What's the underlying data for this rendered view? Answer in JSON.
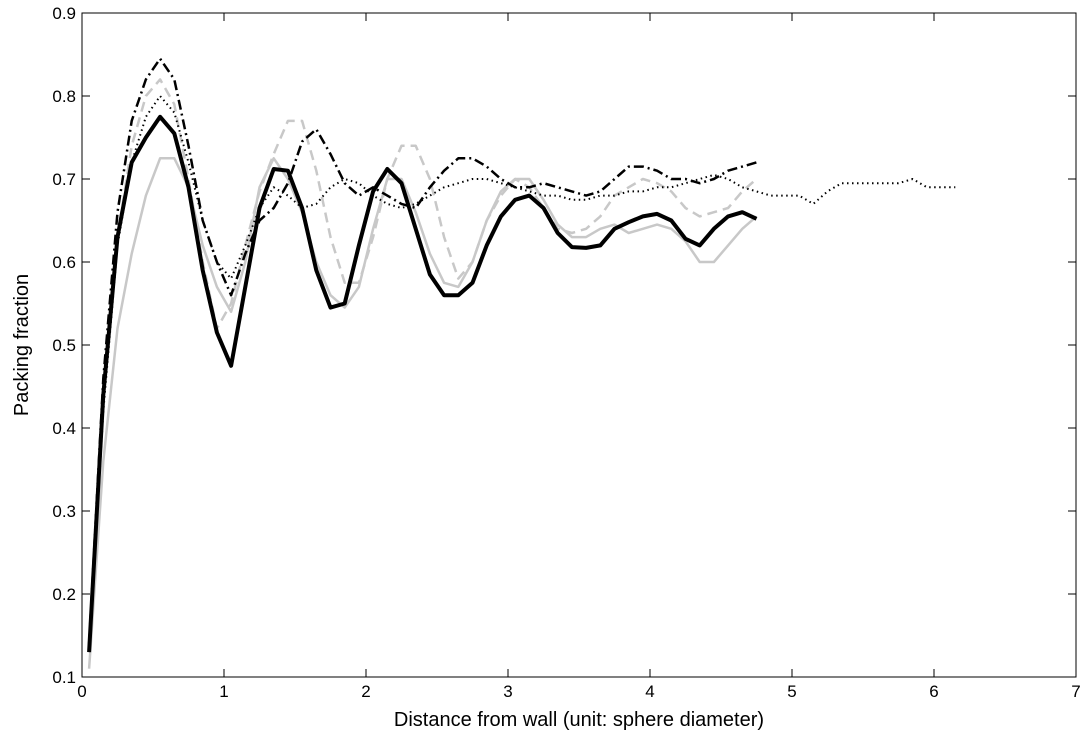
{
  "chart_data": {
    "type": "line",
    "title": "",
    "xlabel": "Distance from wall (unit: sphere diameter)",
    "ylabel": "Packing fraction",
    "xlim": [
      0,
      7
    ],
    "ylim": [
      0.1,
      0.9
    ],
    "xticks": [
      0,
      1,
      2,
      3,
      4,
      5,
      6,
      7
    ],
    "xtick_labels": [
      "0",
      "1",
      "2",
      "3",
      "4",
      "5",
      "6",
      "7"
    ],
    "yticks": [
      0.1,
      0.2,
      0.3,
      0.4,
      0.5,
      0.6,
      0.7,
      0.8,
      0.9
    ],
    "ytick_labels": [
      "0.1",
      "0.2",
      "0.3",
      "0.4",
      "0.5",
      "0.6",
      "0.7",
      "0.8",
      "0.9"
    ],
    "grid": false,
    "legend": "none",
    "series": [
      {
        "color": "#c8c8c8",
        "dash": "solid",
        "width": 2.5,
        "x": [
          0.05,
          0.15,
          0.25,
          0.35,
          0.45,
          0.55,
          0.65,
          0.75,
          0.85,
          0.95,
          1.05,
          1.15,
          1.25,
          1.35,
          1.45,
          1.55,
          1.65,
          1.75,
          1.85,
          1.95,
          2.05,
          2.15,
          2.25,
          2.35,
          2.45,
          2.55,
          2.65,
          2.75,
          2.85,
          2.95,
          3.05,
          3.15,
          3.25,
          3.35,
          3.45,
          3.55,
          3.65,
          3.75,
          3.85,
          3.95,
          4.05,
          4.15,
          4.25,
          4.35,
          4.45,
          4.55,
          4.65,
          4.75
        ],
        "y": [
          0.11,
          0.36,
          0.52,
          0.61,
          0.68,
          0.725,
          0.725,
          0.69,
          0.62,
          0.57,
          0.54,
          0.6,
          0.69,
          0.725,
          0.7,
          0.66,
          0.6,
          0.56,
          0.545,
          0.57,
          0.64,
          0.7,
          0.7,
          0.66,
          0.61,
          0.575,
          0.57,
          0.6,
          0.65,
          0.685,
          0.7,
          0.7,
          0.675,
          0.645,
          0.63,
          0.63,
          0.64,
          0.645,
          0.635,
          0.64,
          0.645,
          0.64,
          0.625,
          0.6,
          0.6,
          0.62,
          0.64,
          0.655
        ]
      },
      {
        "color": "#c8c8c8",
        "dash": "dashed",
        "width": 2.5,
        "x": [
          0.05,
          0.15,
          0.25,
          0.35,
          0.45,
          0.55,
          0.65,
          0.75,
          0.85,
          0.95,
          1.05,
          1.15,
          1.25,
          1.35,
          1.45,
          1.55,
          1.65,
          1.75,
          1.85,
          1.95,
          2.05,
          2.15,
          2.25,
          2.35,
          2.45,
          2.55,
          2.65,
          2.75,
          2.85,
          2.95,
          3.05,
          3.15,
          3.25,
          3.35,
          3.45,
          3.55,
          3.65,
          3.75,
          3.85,
          3.95,
          4.05,
          4.15,
          4.25,
          4.35,
          4.45,
          4.55,
          4.65,
          4.75
        ],
        "y": [
          0.13,
          0.44,
          0.63,
          0.74,
          0.8,
          0.82,
          0.79,
          0.7,
          0.6,
          0.52,
          0.55,
          0.62,
          0.685,
          0.73,
          0.77,
          0.77,
          0.71,
          0.63,
          0.575,
          0.575,
          0.63,
          0.7,
          0.74,
          0.74,
          0.7,
          0.63,
          0.58,
          0.6,
          0.65,
          0.68,
          0.7,
          0.69,
          0.665,
          0.64,
          0.635,
          0.64,
          0.655,
          0.68,
          0.69,
          0.7,
          0.695,
          0.685,
          0.665,
          0.655,
          0.66,
          0.665,
          0.685,
          0.7
        ]
      },
      {
        "color": "#000000",
        "dash": "dotted",
        "width": 2.0,
        "x": [
          0.05,
          0.15,
          0.25,
          0.35,
          0.45,
          0.55,
          0.65,
          0.75,
          0.85,
          0.95,
          1.05,
          1.15,
          1.25,
          1.35,
          1.45,
          1.55,
          1.65,
          1.75,
          1.85,
          1.95,
          2.05,
          2.15,
          2.25,
          2.35,
          2.45,
          2.55,
          2.65,
          2.75,
          2.85,
          2.95,
          3.05,
          3.15,
          3.25,
          3.35,
          3.45,
          3.55,
          3.65,
          3.75,
          3.85,
          3.95,
          4.05,
          4.15,
          4.25,
          4.35,
          4.45,
          4.55,
          4.65,
          4.75,
          4.85,
          4.95,
          5.05,
          5.15,
          5.25,
          5.35,
          5.45,
          5.55,
          5.65,
          5.75,
          5.85,
          5.95,
          6.05,
          6.15
        ],
        "y": [
          0.13,
          0.42,
          0.62,
          0.72,
          0.775,
          0.8,
          0.78,
          0.72,
          0.65,
          0.6,
          0.58,
          0.62,
          0.665,
          0.69,
          0.68,
          0.665,
          0.67,
          0.69,
          0.7,
          0.695,
          0.68,
          0.67,
          0.665,
          0.67,
          0.68,
          0.69,
          0.695,
          0.7,
          0.7,
          0.695,
          0.69,
          0.685,
          0.68,
          0.68,
          0.675,
          0.675,
          0.68,
          0.68,
          0.685,
          0.685,
          0.69,
          0.69,
          0.695,
          0.7,
          0.705,
          0.7,
          0.69,
          0.685,
          0.68,
          0.68,
          0.68,
          0.67,
          0.685,
          0.695,
          0.695,
          0.695,
          0.695,
          0.695,
          0.7,
          0.69,
          0.69,
          0.69
        ]
      },
      {
        "color": "#000000",
        "dash": "dashdot",
        "width": 2.5,
        "x": [
          0.05,
          0.15,
          0.25,
          0.35,
          0.45,
          0.55,
          0.65,
          0.75,
          0.85,
          0.95,
          1.05,
          1.15,
          1.25,
          1.35,
          1.45,
          1.55,
          1.65,
          1.75,
          1.85,
          1.95,
          2.05,
          2.15,
          2.25,
          2.35,
          2.45,
          2.55,
          2.65,
          2.75,
          2.85,
          2.95,
          3.05,
          3.15,
          3.25,
          3.35,
          3.45,
          3.55,
          3.65,
          3.75,
          3.85,
          3.95,
          4.05,
          4.15,
          4.25,
          4.35,
          4.45,
          4.55,
          4.65,
          4.75
        ],
        "y": [
          0.14,
          0.46,
          0.66,
          0.77,
          0.82,
          0.845,
          0.82,
          0.74,
          0.65,
          0.6,
          0.56,
          0.61,
          0.65,
          0.665,
          0.695,
          0.745,
          0.76,
          0.73,
          0.695,
          0.68,
          0.69,
          0.68,
          0.67,
          0.665,
          0.69,
          0.71,
          0.725,
          0.725,
          0.715,
          0.7,
          0.69,
          0.69,
          0.695,
          0.69,
          0.685,
          0.68,
          0.685,
          0.7,
          0.715,
          0.715,
          0.71,
          0.7,
          0.7,
          0.695,
          0.7,
          0.71,
          0.715,
          0.72
        ]
      },
      {
        "color": "#000000",
        "dash": "solid",
        "width": 4.0,
        "x": [
          0.05,
          0.15,
          0.25,
          0.35,
          0.45,
          0.55,
          0.65,
          0.75,
          0.85,
          0.95,
          1.05,
          1.15,
          1.25,
          1.35,
          1.45,
          1.55,
          1.65,
          1.75,
          1.85,
          1.95,
          2.05,
          2.15,
          2.25,
          2.35,
          2.45,
          2.55,
          2.65,
          2.75,
          2.85,
          2.95,
          3.05,
          3.15,
          3.25,
          3.35,
          3.45,
          3.55,
          3.65,
          3.75,
          3.85,
          3.95,
          4.05,
          4.15,
          4.25,
          4.35,
          4.45,
          4.55,
          4.65,
          4.75
        ],
        "y": [
          0.13,
          0.44,
          0.63,
          0.72,
          0.75,
          0.775,
          0.755,
          0.69,
          0.59,
          0.515,
          0.475,
          0.57,
          0.665,
          0.712,
          0.71,
          0.665,
          0.59,
          0.545,
          0.55,
          0.62,
          0.685,
          0.712,
          0.695,
          0.64,
          0.585,
          0.56,
          0.56,
          0.575,
          0.62,
          0.655,
          0.675,
          0.68,
          0.665,
          0.635,
          0.618,
          0.617,
          0.62,
          0.64,
          0.648,
          0.655,
          0.658,
          0.65,
          0.628,
          0.62,
          0.64,
          0.655,
          0.66,
          0.652
        ]
      }
    ]
  }
}
